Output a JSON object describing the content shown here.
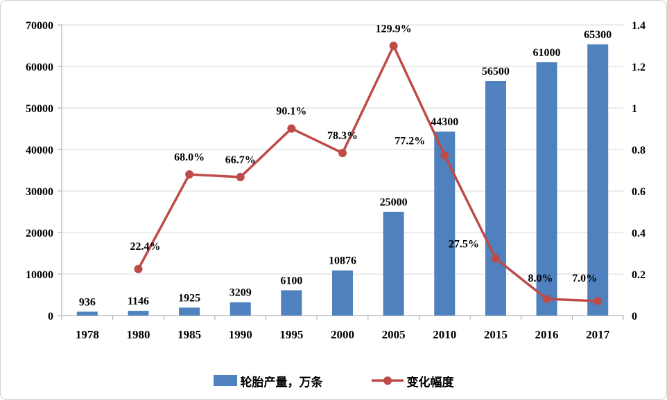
{
  "chart_data": {
    "type": "combo",
    "title": "",
    "categories": [
      "1978",
      "1980",
      "1985",
      "1990",
      "1995",
      "2000",
      "2005",
      "2010",
      "2015",
      "2016",
      "2017"
    ],
    "series": [
      {
        "name": "轮胎产量，万条",
        "type": "bar",
        "axis": "left",
        "color": "#4E81BD",
        "values": [
          936,
          1146,
          1925,
          3209,
          6100,
          10876,
          25000,
          44300,
          56500,
          61000,
          65300
        ],
        "labels": [
          "936",
          "1146",
          "1925",
          "3209",
          "6100",
          "10876",
          "25000",
          "44300",
          "56500",
          "61000",
          "65300"
        ]
      },
      {
        "name": "变化幅度",
        "type": "line",
        "axis": "right",
        "color": "#BE4B48",
        "values": [
          null,
          0.224,
          0.68,
          0.667,
          0.901,
          0.783,
          1.299,
          0.772,
          0.275,
          0.08,
          0.07
        ],
        "labels": [
          "",
          "22.4%",
          "68.0%",
          "66.7%",
          "90.1%",
          "78.3%",
          "129.9%",
          "77.2%",
          "27.5%",
          "8.0%",
          "7.0%"
        ]
      }
    ],
    "left_axis": {
      "min": 0,
      "max": 70000,
      "step": 10000,
      "ticks": [
        "0",
        "10000",
        "20000",
        "30000",
        "40000",
        "50000",
        "60000",
        "70000"
      ]
    },
    "right_axis": {
      "min": 0,
      "max": 1.4,
      "step": 0.2,
      "ticks": [
        "0",
        "0.2",
        "0.4",
        "0.6",
        "0.8",
        "1",
        "1.2",
        "1.4"
      ]
    },
    "grid": true,
    "grid_color": "#D9D9D9",
    "axis_color": "#A6A6A6",
    "legend_position": "bottom"
  }
}
